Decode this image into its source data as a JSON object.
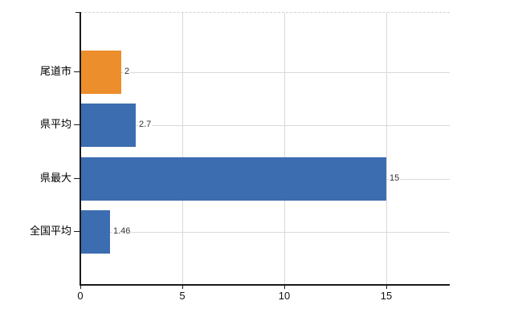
{
  "chart_data": {
    "type": "bar",
    "orientation": "horizontal",
    "title": "",
    "xlabel": "",
    "ylabel": "",
    "categories": [
      "尾道市",
      "県平均",
      "県最大",
      "全国平均"
    ],
    "values": [
      2,
      2.7,
      15,
      1.46
    ],
    "value_labels": [
      "2",
      "2.7",
      "15",
      "1.46"
    ],
    "bar_colors": [
      "#ec8e2c",
      "#3c6db1",
      "#3c6db1",
      "#3c6db1"
    ],
    "x_ticks": [
      0,
      5,
      10,
      15
    ],
    "x_tick_labels": [
      "0",
      "5",
      "10",
      "15"
    ],
    "xlim": [
      0,
      18.1
    ],
    "grid": true,
    "legend": false,
    "data_labels": true
  },
  "colors": {
    "bar_highlight": "#ec8e2c",
    "bar_default": "#3c6db1",
    "axis": "#1a1a1a",
    "vertical_gridline": "#d9d9d9",
    "horizontal_gridline": "#d6dcd6",
    "top_border_dashed": "#d2d2d2",
    "label_text": "#000000",
    "value_text": "#333333",
    "background": "#ffffff"
  }
}
